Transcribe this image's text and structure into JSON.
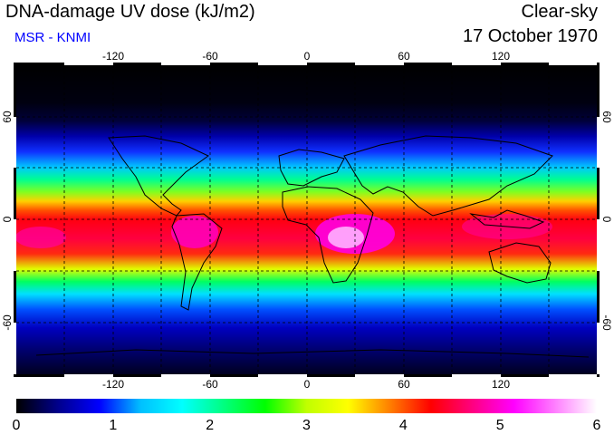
{
  "header": {
    "title": "DNA-damage UV dose (kJ/m2)",
    "subtitle": "MSR - KNMI",
    "condition": "Clear-sky",
    "date": "17 October 1970"
  },
  "map": {
    "lon_ticks": [
      "-120",
      "-60",
      "0",
      "60",
      "120"
    ],
    "lat_ticks": [
      "60",
      "0",
      "-60"
    ],
    "grid_lines": "dashed"
  },
  "colorbar": {
    "labels": [
      "0",
      "1",
      "2",
      "3",
      "4",
      "5",
      "6"
    ],
    "min": 0,
    "max": 6,
    "colors": [
      "#000000",
      "#00008b",
      "#0000ff",
      "#00c0ff",
      "#00ffff",
      "#00ff80",
      "#00ff00",
      "#c0ff00",
      "#ffff00",
      "#ff8000",
      "#ff0000",
      "#ff0080",
      "#ff00ff",
      "#ff80ff",
      "#ffffff"
    ]
  }
}
